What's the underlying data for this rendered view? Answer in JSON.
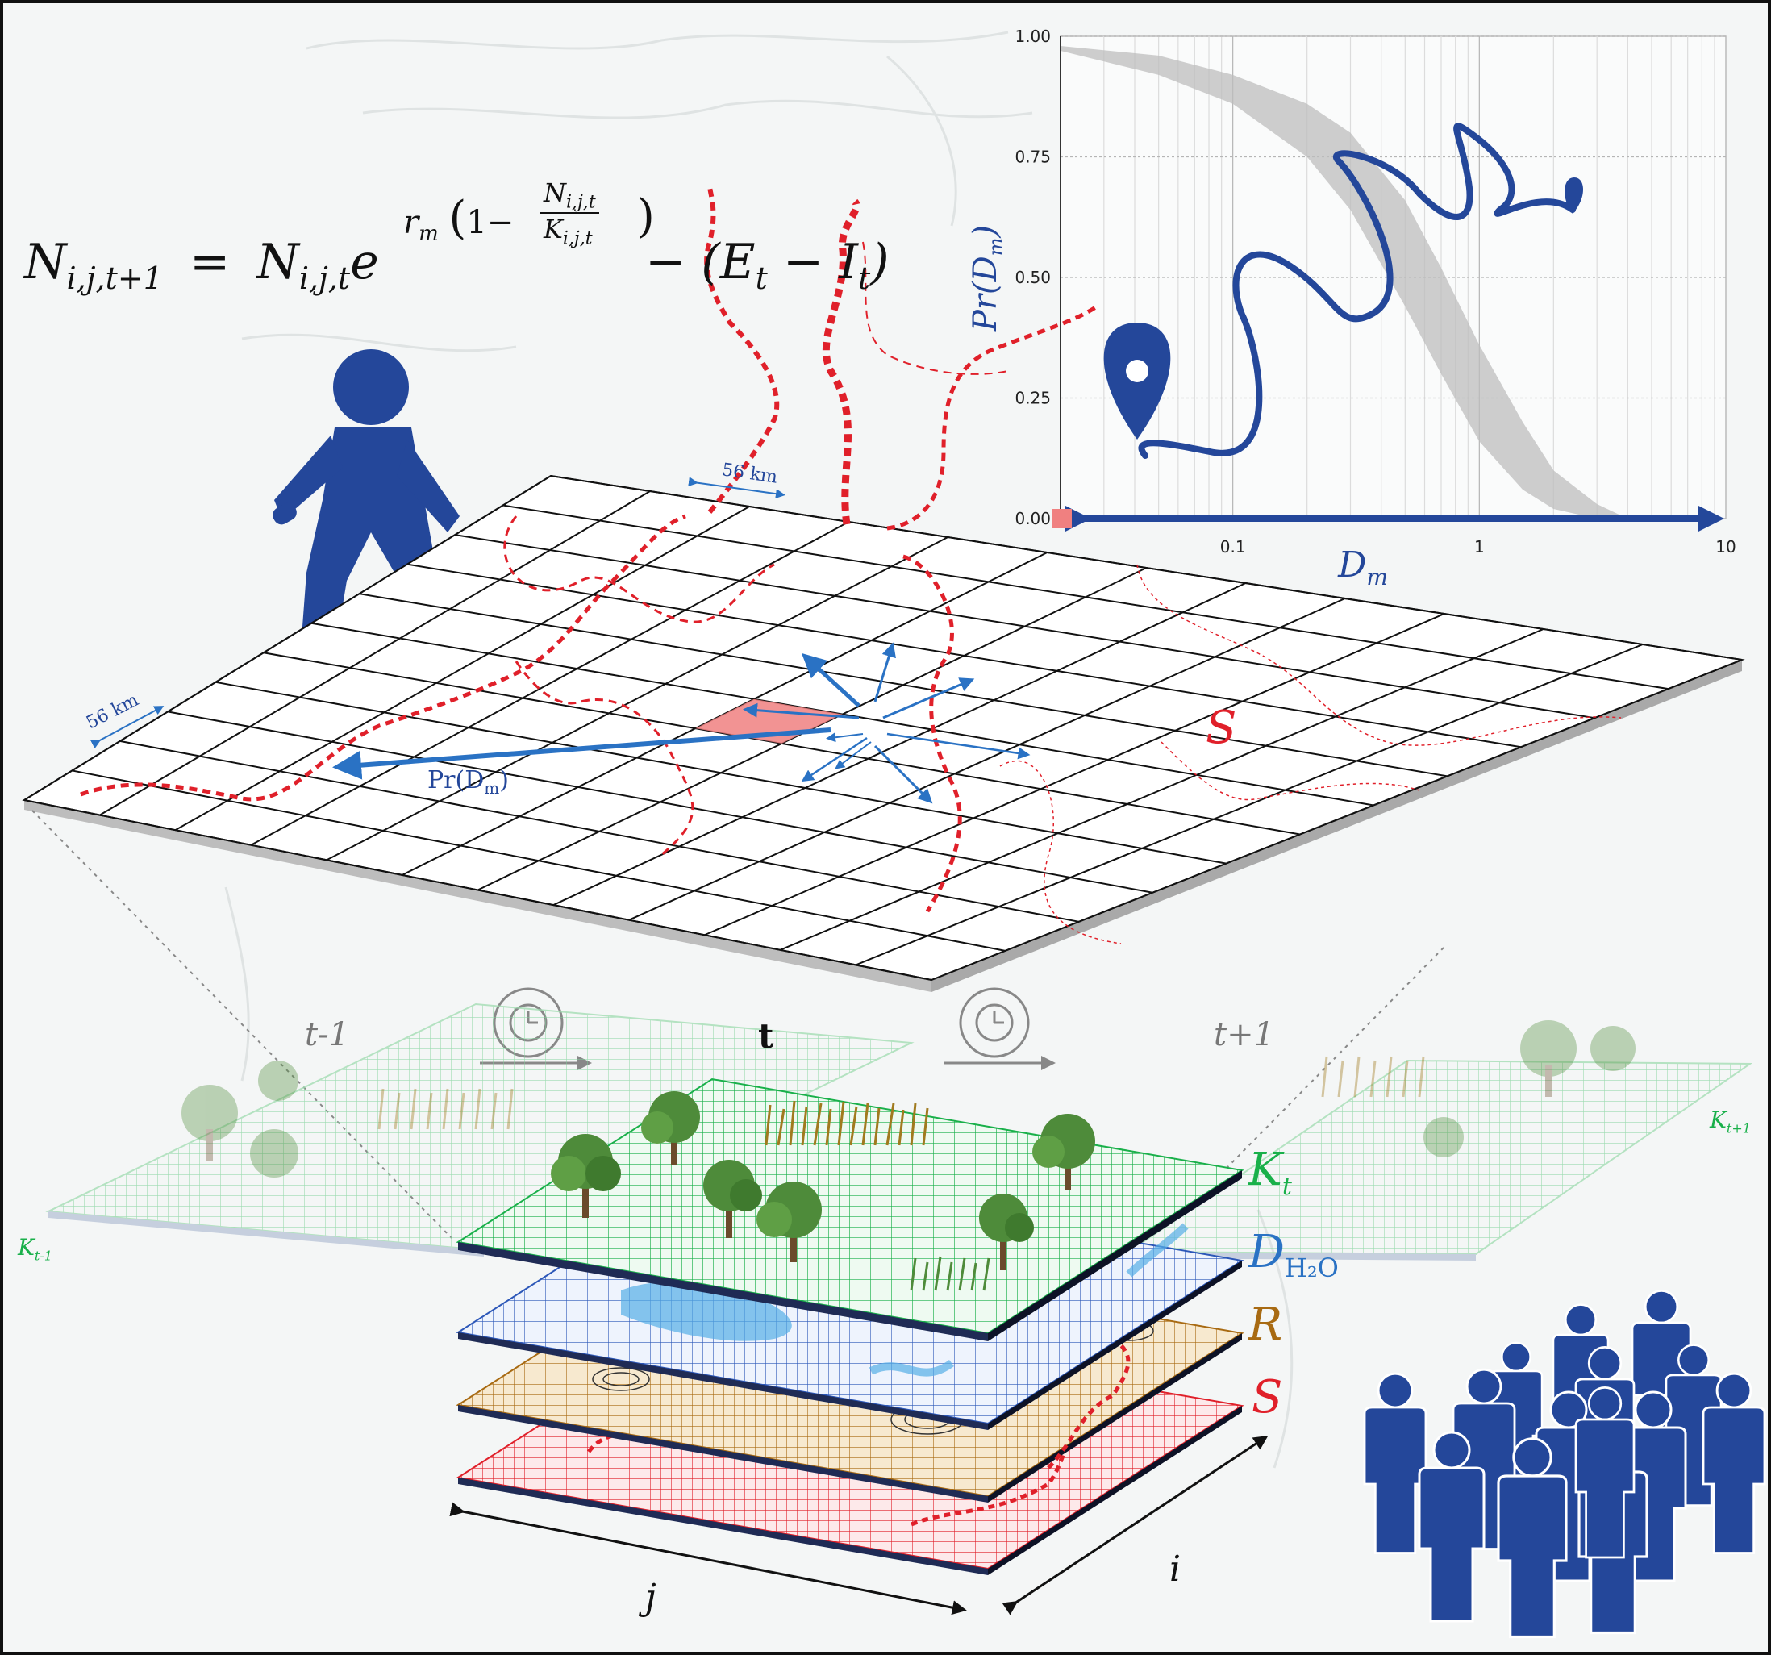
{
  "equation": {
    "lhs_symbol": "N",
    "lhs_sub": "i,j,t+1",
    "eq": "=",
    "rhs_symbol": "N",
    "rhs_sub": "i,j,t",
    "base": "e",
    "exp_r": "r",
    "exp_r_sub": "m",
    "exp_one": "1−",
    "frac_num": "N",
    "frac_num_sub": "i,j,t",
    "frac_den": "K",
    "frac_den_sub": "i,j,t",
    "minus_term": "− (E",
    "E_sub": "t",
    "minus2": " − I",
    "I_sub": "t",
    "close": ")"
  },
  "grid_labels": {
    "dist_top": "56 km",
    "dist_left": "56 km",
    "prob_label": "Pr(D",
    "prob_label_sub": "m",
    "prob_label_close": ")",
    "s_symbol": "S"
  },
  "time_labels": {
    "t_minus_1": "t-1",
    "t": "t",
    "t_plus_1": "t+1"
  },
  "layer_labels": {
    "K": "K",
    "K_sub": "t",
    "D": "D",
    "D_sub": "H₂O",
    "R": "R",
    "S": "S",
    "K_prev": "K",
    "K_prev_sub": "t-1",
    "K_next": "K",
    "K_next_sub": "t+1"
  },
  "axis_labels": {
    "i": "i",
    "j": "j"
  },
  "chart_data": {
    "type": "line",
    "title": "",
    "xlabel": "D_m",
    "ylabel": "Pr(D_m)",
    "x_scale": "log",
    "xlim": [
      0.02,
      10
    ],
    "ylim": [
      0,
      1
    ],
    "x_ticks": [
      "0.1",
      "1",
      "10"
    ],
    "x_tick_values": [
      0.1,
      1,
      10
    ],
    "y_ticks": [
      "0.00",
      "0.25",
      "0.50",
      "0.75",
      "1.00"
    ],
    "y_tick_values": [
      0,
      0.25,
      0.5,
      0.75,
      1
    ],
    "grid": true,
    "series": [
      {
        "kind": "band",
        "color": "#bdbdbd",
        "x": [
          0.02,
          0.05,
          0.1,
          0.2,
          0.3,
          0.5,
          0.7,
          1,
          1.5,
          2,
          3,
          4
        ],
        "upper": [
          0.98,
          0.96,
          0.92,
          0.86,
          0.8,
          0.66,
          0.52,
          0.36,
          0.2,
          0.1,
          0.03,
          0.0
        ],
        "lower": [
          0.97,
          0.92,
          0.86,
          0.75,
          0.64,
          0.44,
          0.3,
          0.16,
          0.06,
          0.02,
          0.0,
          0.0
        ]
      }
    ],
    "accent": "#24479a"
  }
}
